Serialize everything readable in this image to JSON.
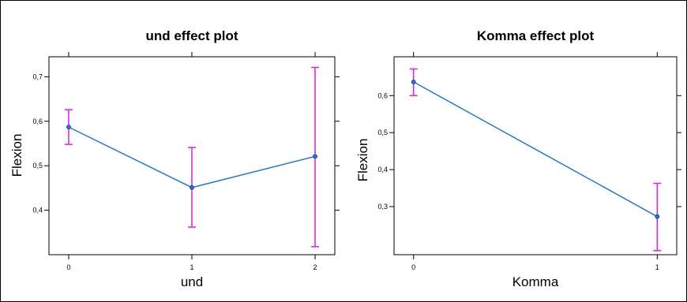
{
  "chart_data": [
    {
      "type": "line",
      "title": "und effect plot",
      "xlabel": "und",
      "ylabel": "Flexion",
      "categories": [
        "0",
        "1",
        "2"
      ],
      "x": [
        0,
        1,
        2
      ],
      "xlim": [
        -0.16,
        2.16
      ],
      "ylim": [
        0.3,
        0.745
      ],
      "yticks": [
        0.4,
        0.5,
        0.6,
        0.7
      ],
      "ytick_labels": [
        "0,4",
        "0,5",
        "0,6",
        "0,7"
      ],
      "series": [
        {
          "values": [
            0.587,
            0.451,
            0.521
          ],
          "lower": [
            0.548,
            0.362,
            0.318
          ],
          "upper": [
            0.626,
            0.541,
            0.721
          ]
        }
      ],
      "colors": {
        "line": "#1f78e0",
        "errorbar": "#e61be6"
      }
    },
    {
      "type": "line",
      "title": "Komma effect plot",
      "xlabel": "Komma",
      "ylabel": "Flexion",
      "categories": [
        "0",
        "1"
      ],
      "x": [
        0,
        1
      ],
      "xlim": [
        -0.08,
        1.08
      ],
      "ylim": [
        0.17,
        0.705
      ],
      "yticks": [
        0.3,
        0.4,
        0.5,
        0.6
      ],
      "ytick_labels": [
        "0,3",
        "0,4",
        "0,5",
        "0,6"
      ],
      "series": [
        {
          "values": [
            0.637,
            0.273
          ],
          "lower": [
            0.6,
            0.181
          ],
          "upper": [
            0.672,
            0.363
          ]
        }
      ],
      "colors": {
        "line": "#1f78e0",
        "errorbar": "#e61be6"
      }
    }
  ]
}
